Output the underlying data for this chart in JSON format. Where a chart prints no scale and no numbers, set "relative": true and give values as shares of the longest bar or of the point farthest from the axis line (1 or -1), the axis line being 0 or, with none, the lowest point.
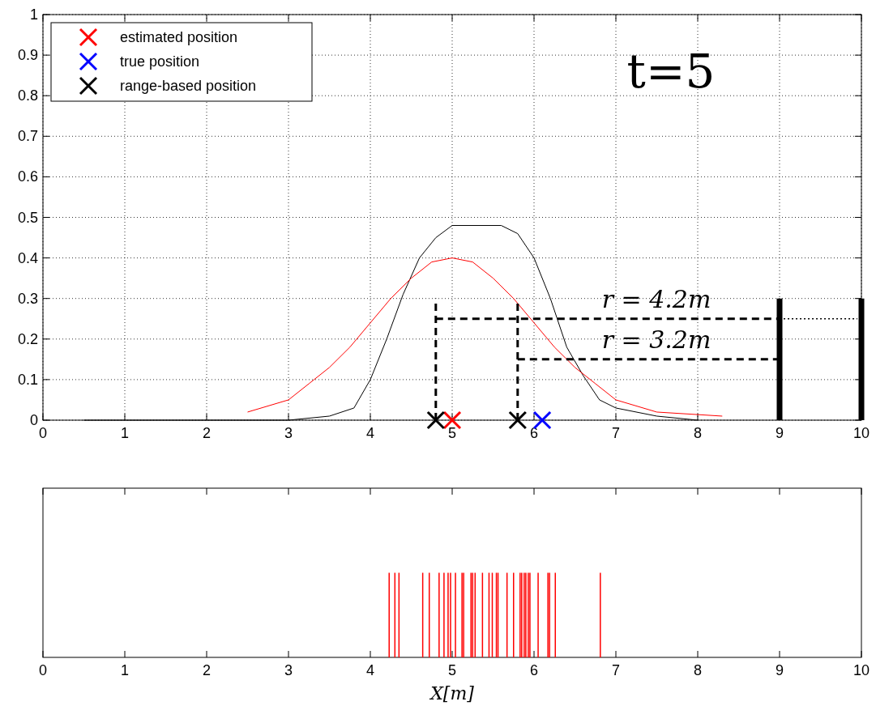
{
  "chart_data": [
    {
      "type": "line",
      "title": "t=5",
      "xlim": [
        0,
        10
      ],
      "ylim": [
        0,
        1
      ],
      "xticks": [
        0,
        1,
        2,
        3,
        4,
        5,
        6,
        7,
        8,
        9,
        10
      ],
      "yticks": [
        0,
        0.1,
        0.2,
        0.3,
        0.4,
        0.5,
        0.6,
        0.7,
        0.8,
        0.9,
        1
      ],
      "grid": true,
      "legend": "top left",
      "line_style": "solid",
      "annotations": [
        "r = 4.2m",
        "r = 3.2m"
      ],
      "series": [
        {
          "color": "#000000",
          "x": [
            0.5,
            3,
            3.5,
            3.8,
            4,
            4.2,
            4.4,
            4.6,
            4.8,
            5,
            5.6,
            5.8,
            6,
            6.2,
            6.4,
            6.6,
            6.8,
            7,
            7.5,
            8
          ],
          "values": [
            0,
            0,
            0.01,
            0.03,
            0.1,
            0.2,
            0.31,
            0.4,
            0.45,
            0.48,
            0.48,
            0.46,
            0.4,
            0.3,
            0.18,
            0.11,
            0.05,
            0.03,
            0.01,
            0
          ]
        },
        {
          "color": "#ff0000",
          "x": [
            2.5,
            3,
            3.25,
            3.5,
            3.75,
            4,
            4.25,
            4.5,
            4.75,
            5,
            5.25,
            5.5,
            5.75,
            6,
            6.25,
            6.5,
            6.75,
            7,
            7.5,
            8.3
          ],
          "values": [
            0.02,
            0.05,
            0.09,
            0.13,
            0.18,
            0.24,
            0.3,
            0.35,
            0.39,
            0.4,
            0.39,
            0.35,
            0.3,
            0.24,
            0.18,
            0.13,
            0.09,
            0.05,
            0.02,
            0.01
          ]
        },
        {
          "color": "#000000",
          "line_style": "dashed",
          "x": [
            4.8,
            4.8
          ],
          "values": [
            0,
            0.3
          ]
        },
        {
          "color": "#000000",
          "line_style": "dashed",
          "x": [
            4.8,
            9
          ],
          "values": [
            0.25,
            0.25
          ]
        },
        {
          "color": "#000000",
          "line_style": "dashed",
          "x": [
            5.8,
            5.8
          ],
          "values": [
            0,
            0.3
          ]
        },
        {
          "color": "#000000",
          "line_style": "dashed",
          "x": [
            5.8,
            9
          ],
          "values": [
            0.15,
            0.15
          ]
        },
        {
          "color": "#000000",
          "x": [
            9,
            9
          ],
          "values": [
            0,
            0.3
          ]
        },
        {
          "color": "#000000",
          "x": [
            10,
            10
          ],
          "values": [
            0,
            0.3
          ]
        },
        {
          "color": "#000000",
          "line_style": "dotted",
          "x": [
            9.05,
            9.95
          ],
          "values": [
            0.25,
            0.25
          ]
        },
        {
          "type": "scatter",
          "name": "estimated position",
          "color": "#ff0000",
          "marker": "cross",
          "x": [
            5
          ],
          "values": [
            0
          ]
        },
        {
          "type": "scatter",
          "name": "true position",
          "color": "#0000ff",
          "marker": "cross",
          "x": [
            6.1
          ],
          "values": [
            0
          ]
        },
        {
          "type": "scatter",
          "name": "range-based position",
          "color": "#000000",
          "marker": "cross",
          "x": [
            4.8,
            5.8
          ],
          "values": [
            0,
            0
          ]
        }
      ]
    },
    {
      "type": "bar",
      "relative": true,
      "xlabel": "X[m]",
      "xlim": [
        0,
        10
      ],
      "xticks": [
        0,
        1,
        2,
        3,
        4,
        5,
        6,
        7,
        8,
        9,
        10
      ],
      "tick_labels": "x",
      "color": "#ff0000",
      "x": [
        4.23,
        4.3,
        4.35,
        4.64,
        4.72,
        4.84,
        4.9,
        4.95,
        4.98,
        5.04,
        5.12,
        5.14,
        5.23,
        5.25,
        5.28,
        5.37,
        5.45,
        5.49,
        5.54,
        5.56,
        5.67,
        5.75,
        5.83,
        5.85,
        5.88,
        5.9,
        5.93,
        5.95,
        6.05,
        6.17,
        6.19,
        6.26,
        6.81
      ],
      "values": [
        1,
        1,
        1,
        1,
        1,
        1,
        1,
        1,
        1,
        1,
        1,
        1,
        1,
        1,
        1,
        1,
        1,
        1,
        1,
        1,
        1,
        1,
        1,
        1,
        1,
        1,
        1,
        1,
        1,
        1,
        1,
        1,
        1
      ]
    }
  ]
}
